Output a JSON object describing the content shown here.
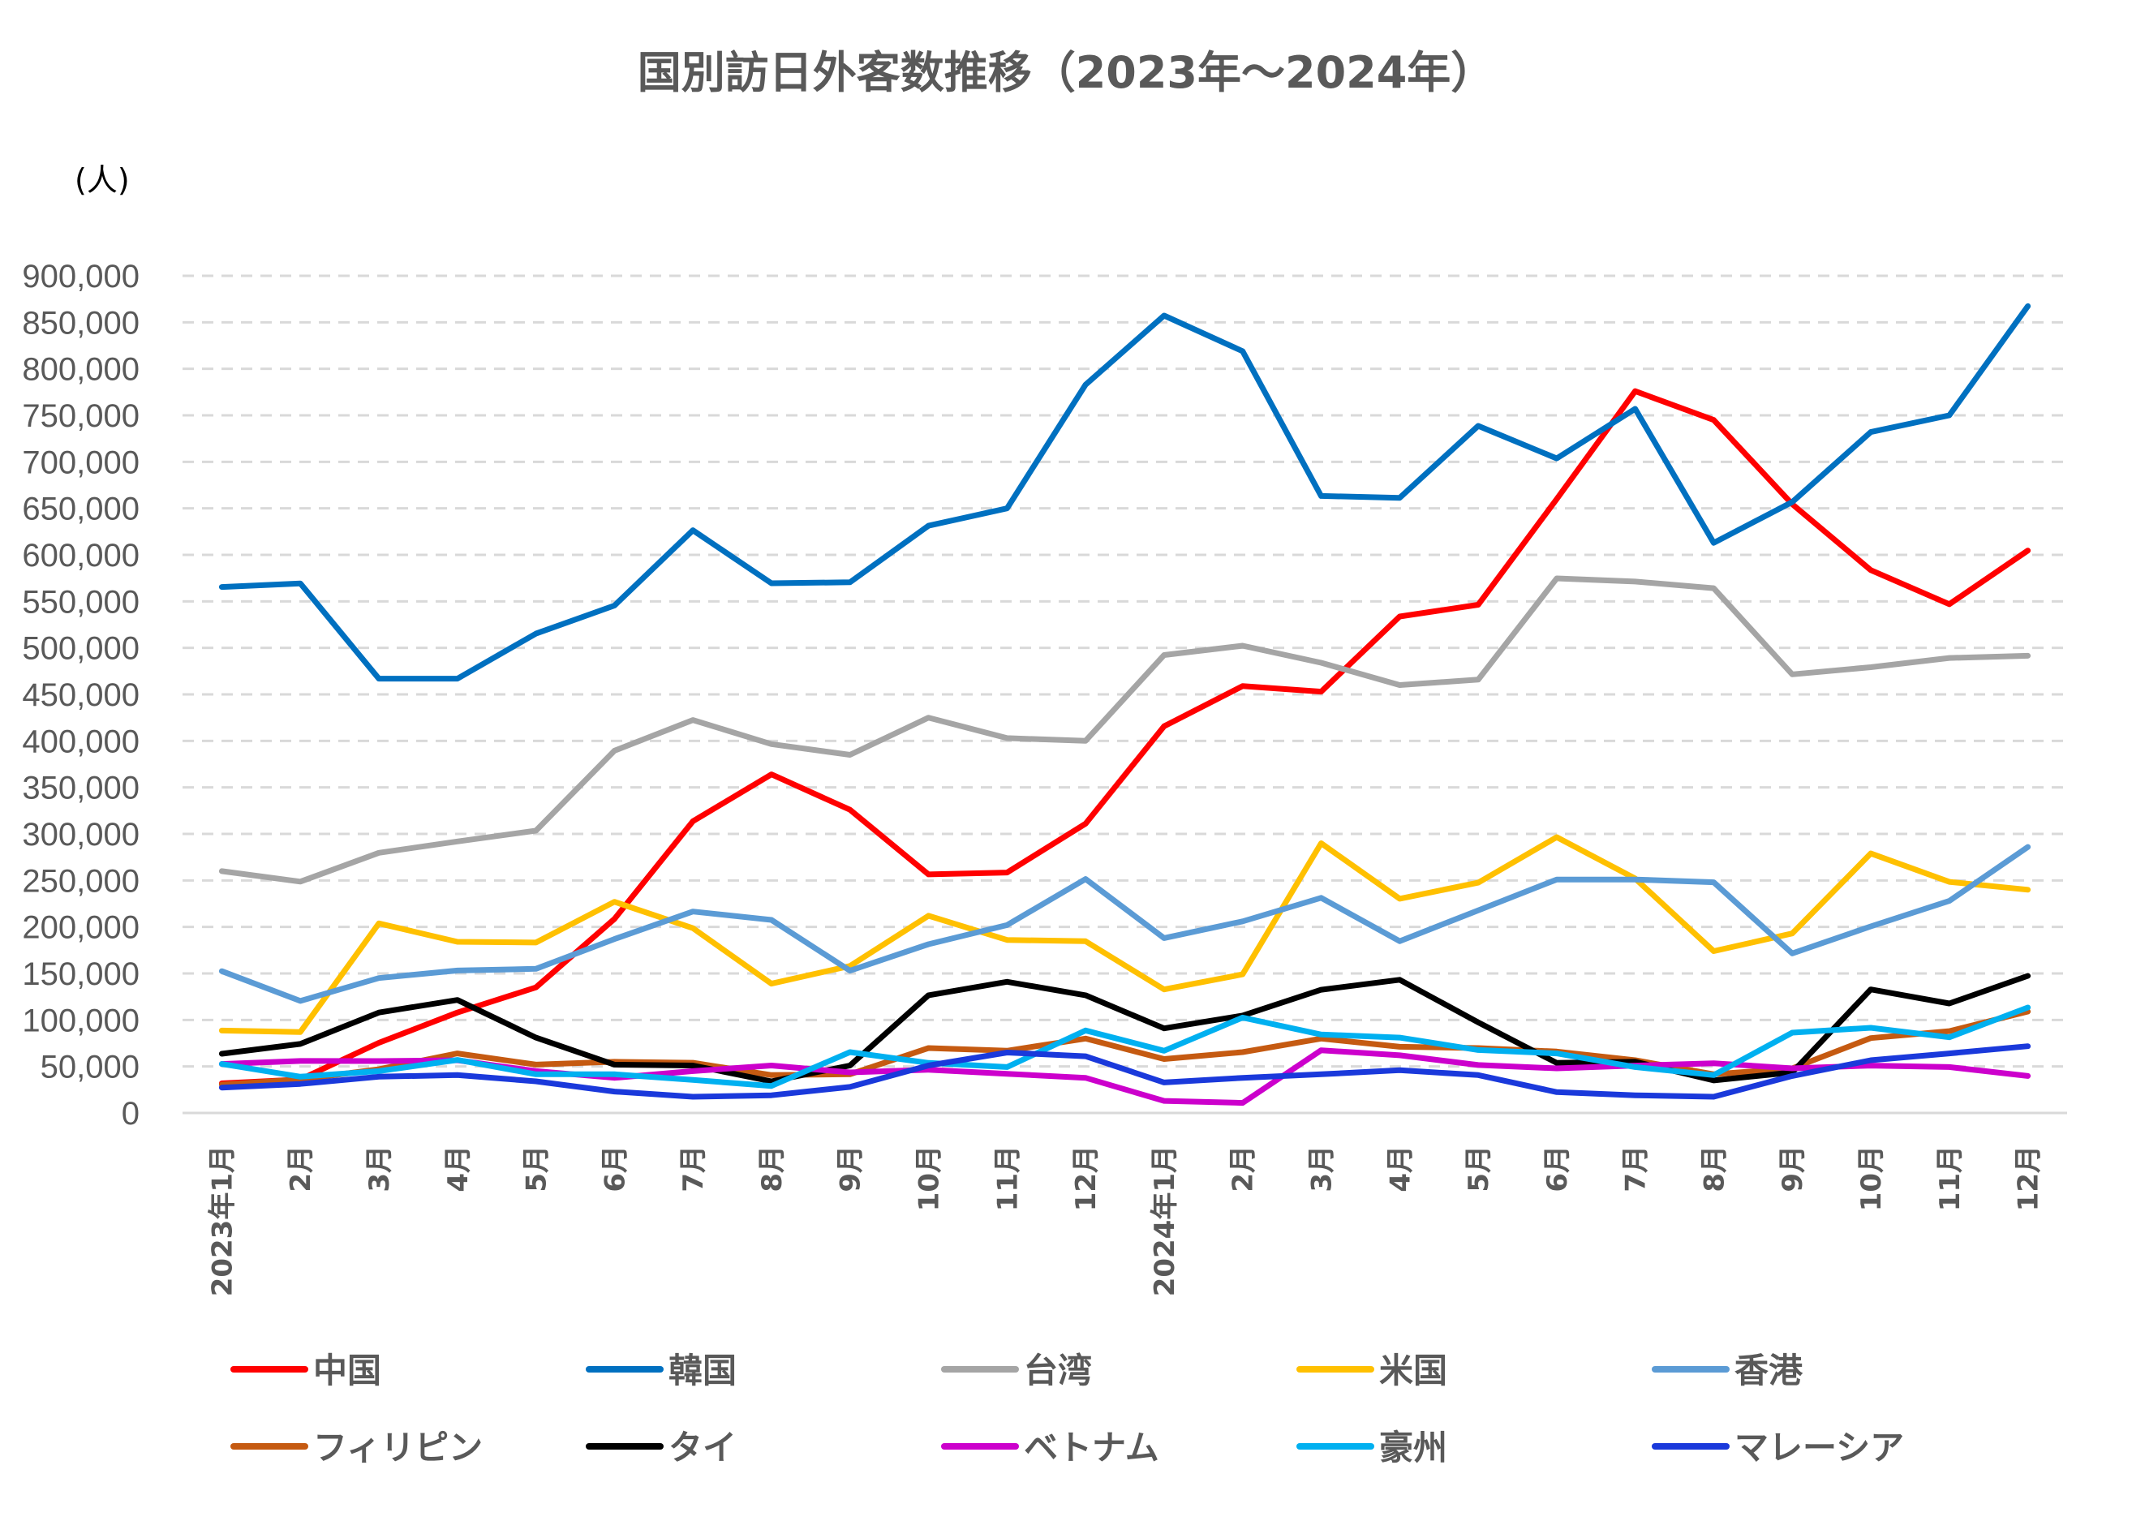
{
  "chart_data": {
    "type": "line",
    "title": "国別訪日外客数推移（2023年～2024年）",
    "ylabel": "(人)",
    "xlabel": "",
    "ylim": [
      0,
      900000
    ],
    "y_ticks": [
      0,
      50000,
      100000,
      150000,
      200000,
      250000,
      300000,
      350000,
      400000,
      450000,
      500000,
      550000,
      600000,
      650000,
      700000,
      750000,
      800000,
      850000,
      900000
    ],
    "y_tick_labels": [
      "0",
      "50,000",
      "100,000",
      "150,000",
      "200,000",
      "250,000",
      "300,000",
      "350,000",
      "400,000",
      "450,000",
      "500,000",
      "550,000",
      "600,000",
      "650,000",
      "700,000",
      "750,000",
      "800,000",
      "850,000",
      "900,000"
    ],
    "grid": true,
    "legend_position": "bottom",
    "categories": [
      "2023年1月",
      "2月",
      "3月",
      "4月",
      "5月",
      "6月",
      "7月",
      "8月",
      "9月",
      "10月",
      "11月",
      "12月",
      "2024年1月",
      "2月",
      "3月",
      "4月",
      "5月",
      "6月",
      "7月",
      "8月",
      "9月",
      "10月",
      "11月",
      "12月"
    ],
    "series": [
      {
        "name": "中国",
        "color": "#FF0000",
        "values": [
          31800,
          36000,
          75400,
          108000,
          135000,
          208600,
          313600,
          364000,
          326000,
          256500,
          258500,
          311000,
          415700,
          459000,
          453000,
          533700,
          546400,
          660000,
          776000,
          745000,
          654500,
          583600,
          547000,
          604600
        ]
      },
      {
        "name": "韓国",
        "color": "#0070C0",
        "values": [
          565500,
          569300,
          466900,
          466900,
          515300,
          545500,
          626400,
          569500,
          570500,
          631300,
          650000,
          783000,
          857300,
          819000,
          663300,
          661300,
          738700,
          703700,
          757000,
          612900,
          656800,
          732000,
          750000,
          867400
        ]
      },
      {
        "name": "台湾",
        "color": "#A5A5A5",
        "values": [
          260000,
          248700,
          279700,
          291900,
          303500,
          389500,
          422400,
          396500,
          385000,
          425000,
          403000,
          400000,
          492300,
          502300,
          484000,
          460000,
          465900,
          574700,
          571300,
          564200,
          471500,
          479200,
          489200,
          491500
        ]
      },
      {
        "name": "米国",
        "color": "#FFC000",
        "values": [
          88600,
          87000,
          203800,
          184000,
          183200,
          227000,
          198700,
          139000,
          158000,
          212000,
          186000,
          184600,
          132800,
          149000,
          290000,
          230300,
          247600,
          296500,
          252000,
          174000,
          193000,
          279000,
          248500,
          240000
        ]
      },
      {
        "name": "香港",
        "color": "#5B9BD5",
        "values": [
          152400,
          120400,
          145000,
          153100,
          155000,
          187000,
          216500,
          207600,
          153000,
          181400,
          202000,
          251500,
          188000,
          206000,
          231300,
          184700,
          217800,
          251000,
          251000,
          248000,
          171500,
          200600,
          228000,
          286000
        ]
      },
      {
        "name": "フィリピン",
        "color": "#C55A11",
        "values": [
          30400,
          36000,
          47000,
          64000,
          52000,
          55000,
          54000,
          40700,
          41600,
          69800,
          66900,
          80000,
          58000,
          65400,
          80000,
          71200,
          69800,
          66000,
          56700,
          41600,
          48000,
          80500,
          88000,
          109000
        ]
      },
      {
        "name": "タイ",
        "color": "#000000",
        "values": [
          63700,
          74200,
          108000,
          121500,
          81000,
          52000,
          51000,
          34000,
          51000,
          126500,
          141000,
          126500,
          91000,
          104700,
          132500,
          143200,
          97400,
          53800,
          55000,
          35000,
          43600,
          132800,
          117700,
          147400
        ]
      },
      {
        "name": "ベトナム",
        "color": "#CC00CC",
        "values": [
          52700,
          55900,
          55800,
          56700,
          45000,
          37800,
          45000,
          51000,
          43600,
          46500,
          42000,
          37800,
          13000,
          10800,
          67400,
          62000,
          51500,
          48000,
          50900,
          53500,
          48000,
          50900,
          49400,
          39800
        ]
      },
      {
        "name": "豪州",
        "color": "#00B0F0",
        "values": [
          52700,
          39000,
          45000,
          57000,
          41600,
          41600,
          35500,
          29000,
          65400,
          53800,
          49400,
          88700,
          66900,
          102600,
          84300,
          81000,
          67700,
          64000,
          49400,
          40700,
          86300,
          91600,
          81400,
          113400
        ]
      },
      {
        "name": "マレーシア",
        "color": "#1A39DB",
        "values": [
          27300,
          31200,
          39000,
          40700,
          34000,
          23000,
          17400,
          19000,
          28000,
          51000,
          65000,
          61000,
          32800,
          37800,
          41600,
          46000,
          40700,
          22400,
          19000,
          17400,
          39800,
          56700,
          64000,
          71800
        ]
      }
    ]
  }
}
